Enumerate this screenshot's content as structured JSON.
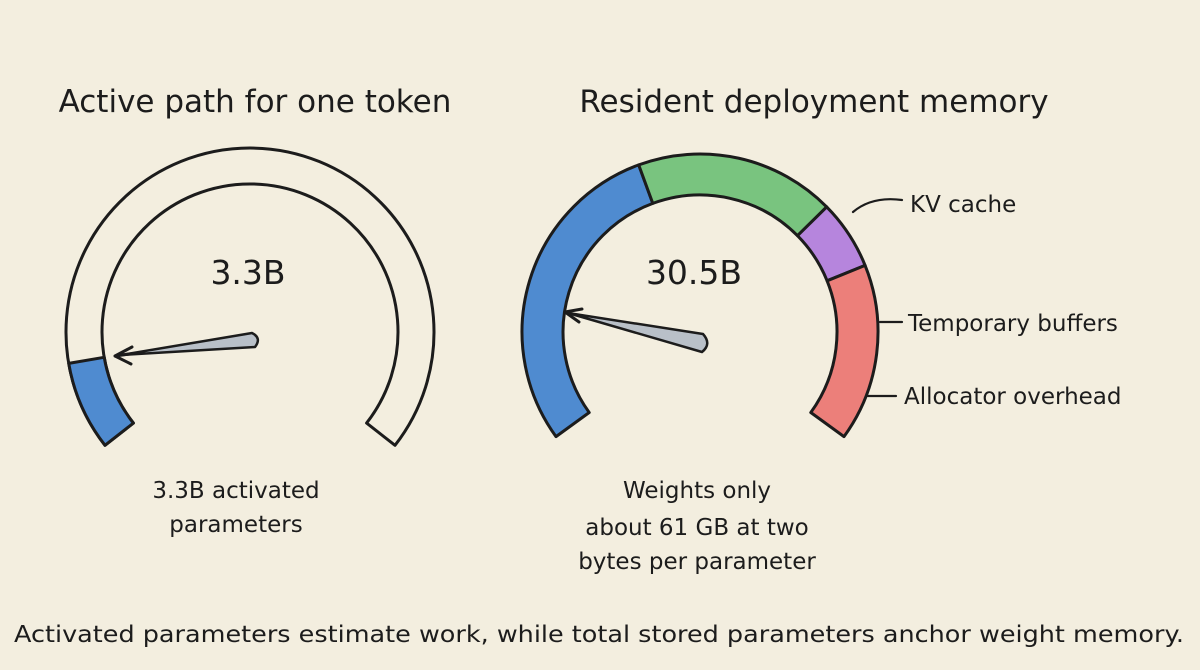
{
  "left_gauge": {
    "title": "Active path for one token",
    "value": "3.3B",
    "caption_lines": [
      "3.3B activated",
      "parameters"
    ],
    "fill_color": "#4f8bd0",
    "fill_fraction": 0.11
  },
  "right_gauge": {
    "title": "Resident deployment memory",
    "value": "30.5B",
    "caption_lines": [
      "Weights only",
      "about 61 GB at two",
      "bytes per parameter"
    ],
    "segments": [
      {
        "name": "Weights",
        "color": "#4f8bd0",
        "fraction": 0.42
      },
      {
        "name": "KV cache",
        "color": "#79c47f",
        "fraction": 0.26
      },
      {
        "name": "Temporary buffers",
        "color": "#b685dd",
        "fraction": 0.09
      },
      {
        "name": "Allocator overhead",
        "color": "#ec7f7a",
        "fraction": 0.23
      }
    ],
    "callouts": {
      "kv_cache": "KV cache",
      "temporary_buffers": "Temporary buffers",
      "allocator_overhead": "Allocator overhead"
    }
  },
  "footer": "Activated parameters estimate work, while total stored parameters anchor weight memory.",
  "colors": {
    "background": "#f3eedf",
    "ink": "#1c1c1c",
    "needle": "#b9c0c8"
  }
}
